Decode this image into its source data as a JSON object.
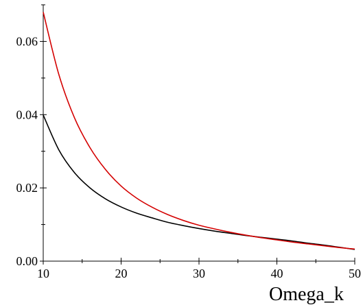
{
  "chart_data": {
    "type": "line",
    "title": "",
    "xlabel": "Omega_k",
    "ylabel": "",
    "xlim": [
      10,
      50
    ],
    "ylim": [
      0,
      0.07
    ],
    "grid": false,
    "legend": "none",
    "x_ticks": [
      {
        "value": 10,
        "label": "10"
      },
      {
        "value": 20,
        "label": "20"
      },
      {
        "value": 30,
        "label": "30"
      },
      {
        "value": 40,
        "label": "40"
      },
      {
        "value": 50,
        "label": "50"
      }
    ],
    "x_minor_step": 5,
    "y_ticks": [
      {
        "value": 0,
        "label": "0.00"
      },
      {
        "value": 0.02,
        "label": "0.02"
      },
      {
        "value": 0.04,
        "label": "0.04"
      },
      {
        "value": 0.06,
        "label": "0.06"
      }
    ],
    "y_minor_step": 0.01,
    "series": [
      {
        "color": "#000000",
        "x": [
          10,
          12,
          14,
          16,
          18,
          20,
          22,
          24,
          26,
          28,
          30,
          32,
          34,
          36,
          38,
          40,
          42,
          44,
          46,
          48,
          50
        ],
        "y": [
          0.0399,
          0.0304,
          0.0242,
          0.02,
          0.017,
          0.0148,
          0.0131,
          0.0118,
          0.0106,
          0.0097,
          0.0089,
          0.0082,
          0.0076,
          0.007,
          0.0065,
          0.006,
          0.0055,
          0.0049,
          0.0044,
          0.0038,
          0.0032
        ]
      },
      {
        "color": "#d40000",
        "x": [
          10,
          12,
          14,
          16,
          18,
          20,
          22,
          24,
          26,
          28,
          30,
          32,
          34,
          36,
          38,
          40,
          42,
          44,
          46,
          48,
          50
        ],
        "y": [
          0.068,
          0.051,
          0.0392,
          0.031,
          0.025,
          0.0205,
          0.0172,
          0.0147,
          0.0127,
          0.0111,
          0.0098,
          0.0088,
          0.0079,
          0.0071,
          0.0064,
          0.0058,
          0.0052,
          0.0047,
          0.0042,
          0.0037,
          0.0033
        ]
      }
    ]
  }
}
